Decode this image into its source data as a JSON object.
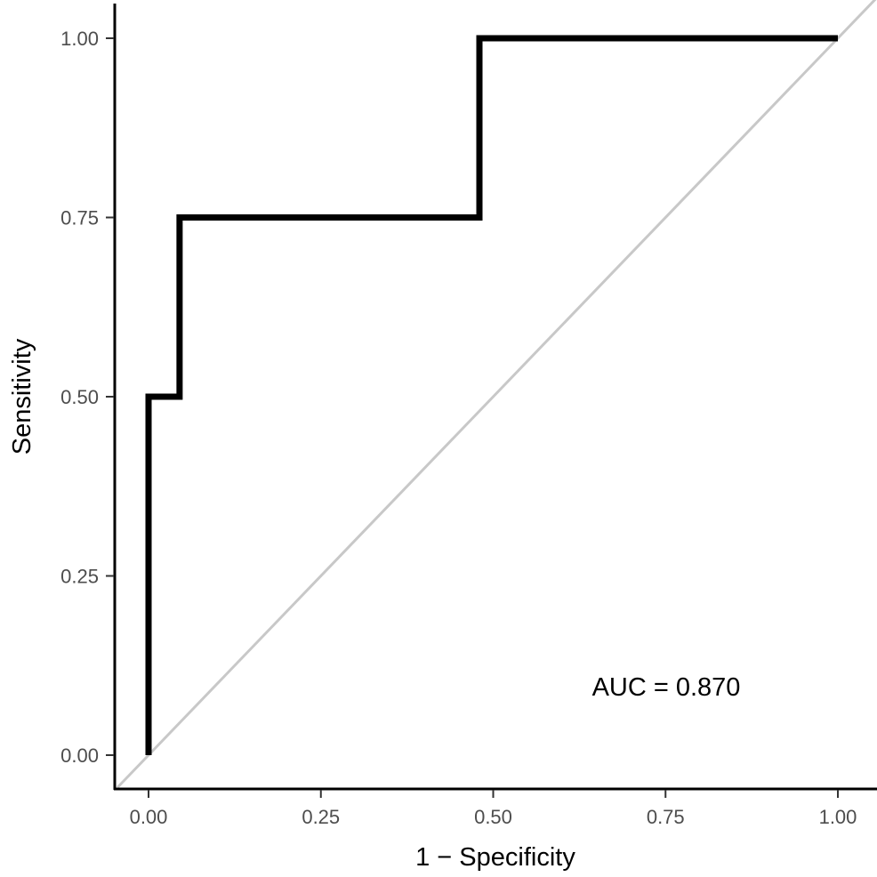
{
  "chart_data": {
    "type": "line",
    "title": "",
    "xlabel": "1 − Specificity",
    "ylabel": "Sensitivity",
    "xlim": [
      0,
      1
    ],
    "ylim": [
      0,
      1
    ],
    "x_ticks": [
      "0.00",
      "0.25",
      "0.50",
      "0.75",
      "1.00"
    ],
    "y_ticks": [
      "0.00",
      "0.25",
      "0.50",
      "0.75",
      "1.00"
    ],
    "grid": false,
    "series": [
      {
        "color": "#000000",
        "points": [
          [
            0.0,
            0.0
          ],
          [
            0.0,
            0.5
          ],
          [
            0.045,
            0.5
          ],
          [
            0.045,
            0.75
          ],
          [
            0.48,
            0.75
          ],
          [
            0.48,
            1.0
          ],
          [
            1.0,
            1.0
          ]
        ]
      }
    ],
    "reference_line": {
      "points": [
        [
          -0.045,
          -0.045
        ],
        [
          1.055,
          1.055
        ]
      ],
      "color": "#c8c8c8"
    },
    "annotation": "AUC = 0.870"
  }
}
